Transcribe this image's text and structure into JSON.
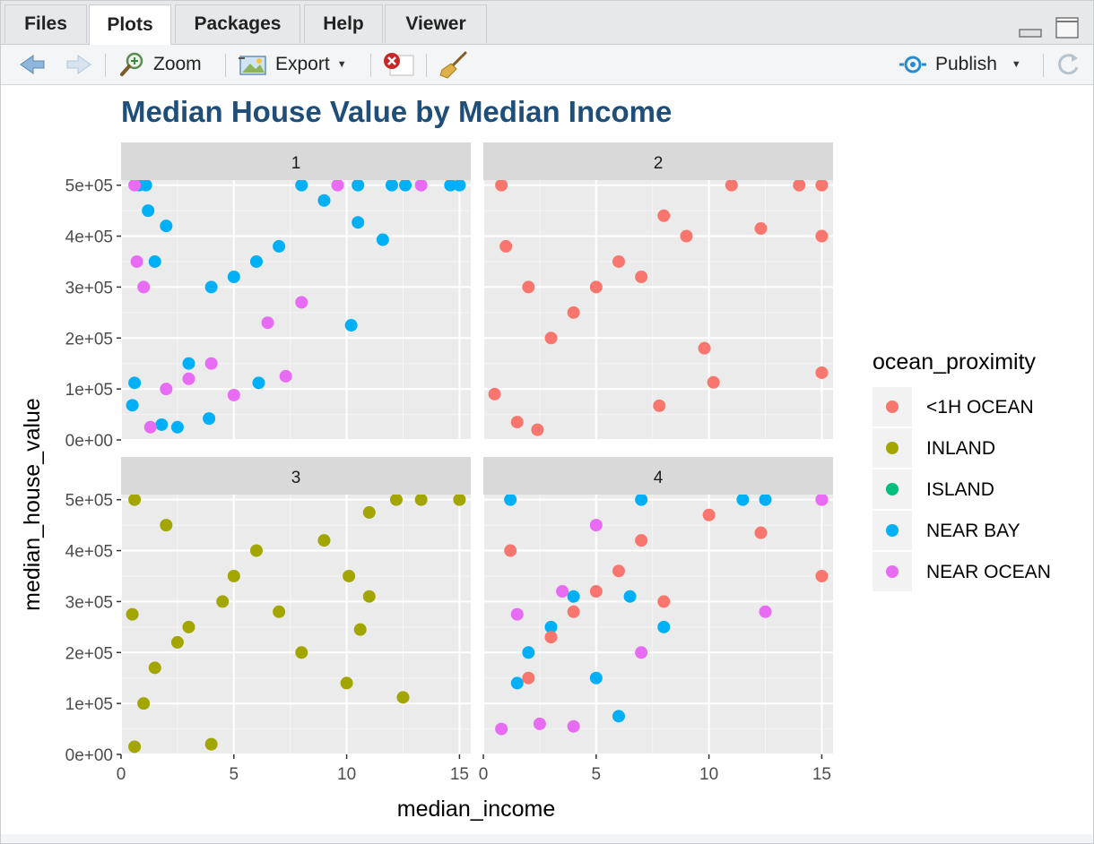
{
  "tabs": [
    {
      "label": "Files",
      "active": false
    },
    {
      "label": "Plots",
      "active": true
    },
    {
      "label": "Packages",
      "active": false
    },
    {
      "label": "Help",
      "active": false
    },
    {
      "label": "Viewer",
      "active": false
    }
  ],
  "toolbar": {
    "zoom_label": "Zoom",
    "export_label": "Export",
    "publish_label": "Publish"
  },
  "colors": {
    "title": "#1f4e79",
    "panel_bg": "#ebebeb",
    "strip_bg": "#d9d9d9",
    "<1H OCEAN": "#F8766D",
    "INLAND": "#A3A500",
    "ISLAND": "#00BF7D",
    "NEAR BAY": "#00B0F6",
    "NEAR OCEAN": "#E76BF3"
  },
  "chart_data": {
    "type": "scatter",
    "title": "Median House Value by Median Income",
    "xlabel": "median_income",
    "ylabel": "median_house_value",
    "xlim": [
      0,
      15.5
    ],
    "ylim": [
      0,
      510000
    ],
    "x_ticks": [
      0,
      5,
      10,
      15
    ],
    "x_tick_labels": [
      "0",
      "5",
      "10",
      "15"
    ],
    "y_ticks": [
      0,
      100000,
      200000,
      300000,
      400000,
      500000
    ],
    "y_tick_labels": [
      "0e+00",
      "1e+05",
      "2e+05",
      "3e+05",
      "4e+05",
      "5e+05"
    ],
    "grid": true,
    "legend": {
      "title": "ocean_proximity",
      "position": "right",
      "entries": [
        "<1H OCEAN",
        "INLAND",
        "ISLAND",
        "NEAR BAY",
        "NEAR OCEAN"
      ]
    },
    "facets": [
      {
        "label": "1",
        "points": [
          {
            "series": "NEAR BAY",
            "x": 0.5,
            "y": 68000
          },
          {
            "series": "NEAR BAY",
            "x": 0.6,
            "y": 112000
          },
          {
            "series": "NEAR BAY",
            "x": 0.8,
            "y": 500000
          },
          {
            "series": "NEAR BAY",
            "x": 1.1,
            "y": 500000
          },
          {
            "series": "NEAR BAY",
            "x": 1.2,
            "y": 450000
          },
          {
            "series": "NEAR BAY",
            "x": 1.5,
            "y": 350000
          },
          {
            "series": "NEAR BAY",
            "x": 1.8,
            "y": 30000
          },
          {
            "series": "NEAR BAY",
            "x": 2.0,
            "y": 420000
          },
          {
            "series": "NEAR BAY",
            "x": 2.5,
            "y": 25000
          },
          {
            "series": "NEAR BAY",
            "x": 3.0,
            "y": 150000
          },
          {
            "series": "NEAR BAY",
            "x": 4.0,
            "y": 300000
          },
          {
            "series": "NEAR BAY",
            "x": 5.0,
            "y": 320000
          },
          {
            "series": "NEAR BAY",
            "x": 6.0,
            "y": 350000
          },
          {
            "series": "NEAR BAY",
            "x": 7.0,
            "y": 380000
          },
          {
            "series": "NEAR BAY",
            "x": 8.0,
            "y": 500000
          },
          {
            "series": "NEAR BAY",
            "x": 9.0,
            "y": 470000
          },
          {
            "series": "NEAR BAY",
            "x": 10.2,
            "y": 225000
          },
          {
            "series": "NEAR BAY",
            "x": 10.5,
            "y": 427000
          },
          {
            "series": "NEAR BAY",
            "x": 10.5,
            "y": 500000
          },
          {
            "series": "NEAR BAY",
            "x": 11.6,
            "y": 393000
          },
          {
            "series": "NEAR BAY",
            "x": 12.0,
            "y": 500000
          },
          {
            "series": "NEAR BAY",
            "x": 12.6,
            "y": 500000
          },
          {
            "series": "NEAR BAY",
            "x": 14.6,
            "y": 500000
          },
          {
            "series": "NEAR BAY",
            "x": 15.0,
            "y": 500000
          },
          {
            "series": "NEAR BAY",
            "x": 6.1,
            "y": 112000
          },
          {
            "series": "NEAR BAY",
            "x": 3.9,
            "y": 42000
          },
          {
            "series": "NEAR OCEAN",
            "x": 0.6,
            "y": 500000
          },
          {
            "series": "NEAR OCEAN",
            "x": 0.7,
            "y": 350000
          },
          {
            "series": "NEAR OCEAN",
            "x": 1.0,
            "y": 300000
          },
          {
            "series": "NEAR OCEAN",
            "x": 1.3,
            "y": 25000
          },
          {
            "series": "NEAR OCEAN",
            "x": 2.0,
            "y": 100000
          },
          {
            "series": "NEAR OCEAN",
            "x": 3.0,
            "y": 120000
          },
          {
            "series": "NEAR OCEAN",
            "x": 4.0,
            "y": 150000
          },
          {
            "series": "NEAR OCEAN",
            "x": 5.0,
            "y": 88000
          },
          {
            "series": "NEAR OCEAN",
            "x": 6.5,
            "y": 230000
          },
          {
            "series": "NEAR OCEAN",
            "x": 7.3,
            "y": 125000
          },
          {
            "series": "NEAR OCEAN",
            "x": 8.0,
            "y": 270000
          },
          {
            "series": "NEAR OCEAN",
            "x": 9.6,
            "y": 500000
          },
          {
            "series": "NEAR OCEAN",
            "x": 13.3,
            "y": 500000
          }
        ]
      },
      {
        "label": "2",
        "points": [
          {
            "series": "<1H OCEAN",
            "x": 0.5,
            "y": 90000
          },
          {
            "series": "<1H OCEAN",
            "x": 0.8,
            "y": 500000
          },
          {
            "series": "<1H OCEAN",
            "x": 1.0,
            "y": 380000
          },
          {
            "series": "<1H OCEAN",
            "x": 1.5,
            "y": 35000
          },
          {
            "series": "<1H OCEAN",
            "x": 2.0,
            "y": 300000
          },
          {
            "series": "<1H OCEAN",
            "x": 2.4,
            "y": 20000
          },
          {
            "series": "<1H OCEAN",
            "x": 3.0,
            "y": 200000
          },
          {
            "series": "<1H OCEAN",
            "x": 4.0,
            "y": 250000
          },
          {
            "series": "<1H OCEAN",
            "x": 5.0,
            "y": 300000
          },
          {
            "series": "<1H OCEAN",
            "x": 6.0,
            "y": 350000
          },
          {
            "series": "<1H OCEAN",
            "x": 7.0,
            "y": 320000
          },
          {
            "series": "<1H OCEAN",
            "x": 7.8,
            "y": 67000
          },
          {
            "series": "<1H OCEAN",
            "x": 8.0,
            "y": 440000
          },
          {
            "series": "<1H OCEAN",
            "x": 9.0,
            "y": 400000
          },
          {
            "series": "<1H OCEAN",
            "x": 9.8,
            "y": 180000
          },
          {
            "series": "<1H OCEAN",
            "x": 10.2,
            "y": 113000
          },
          {
            "series": "<1H OCEAN",
            "x": 11.0,
            "y": 500000
          },
          {
            "series": "<1H OCEAN",
            "x": 12.3,
            "y": 415000
          },
          {
            "series": "<1H OCEAN",
            "x": 14.0,
            "y": 500000
          },
          {
            "series": "<1H OCEAN",
            "x": 15.0,
            "y": 400000
          },
          {
            "series": "<1H OCEAN",
            "x": 15.0,
            "y": 132000
          },
          {
            "series": "<1H OCEAN",
            "x": 15.0,
            "y": 500000
          }
        ]
      },
      {
        "label": "3",
        "points": [
          {
            "series": "INLAND",
            "x": 0.5,
            "y": 275000
          },
          {
            "series": "INLAND",
            "x": 0.6,
            "y": 500000
          },
          {
            "series": "INLAND",
            "x": 0.6,
            "y": 15000
          },
          {
            "series": "INLAND",
            "x": 1.0,
            "y": 100000
          },
          {
            "series": "INLAND",
            "x": 1.5,
            "y": 170000
          },
          {
            "series": "INLAND",
            "x": 2.0,
            "y": 450000
          },
          {
            "series": "INLAND",
            "x": 2.5,
            "y": 220000
          },
          {
            "series": "INLAND",
            "x": 3.0,
            "y": 250000
          },
          {
            "series": "INLAND",
            "x": 4.0,
            "y": 20000
          },
          {
            "series": "INLAND",
            "x": 4.5,
            "y": 300000
          },
          {
            "series": "INLAND",
            "x": 5.0,
            "y": 350000
          },
          {
            "series": "INLAND",
            "x": 6.0,
            "y": 400000
          },
          {
            "series": "INLAND",
            "x": 7.0,
            "y": 280000
          },
          {
            "series": "INLAND",
            "x": 8.0,
            "y": 200000
          },
          {
            "series": "INLAND",
            "x": 9.0,
            "y": 420000
          },
          {
            "series": "INLAND",
            "x": 10.0,
            "y": 140000
          },
          {
            "series": "INLAND",
            "x": 10.1,
            "y": 350000
          },
          {
            "series": "INLAND",
            "x": 10.6,
            "y": 245000
          },
          {
            "series": "INLAND",
            "x": 11.0,
            "y": 475000
          },
          {
            "series": "INLAND",
            "x": 11.0,
            "y": 310000
          },
          {
            "series": "INLAND",
            "x": 12.5,
            "y": 112000
          },
          {
            "series": "INLAND",
            "x": 12.2,
            "y": 500000
          },
          {
            "series": "INLAND",
            "x": 13.3,
            "y": 500000
          },
          {
            "series": "INLAND",
            "x": 15.0,
            "y": 500000
          }
        ]
      },
      {
        "label": "4",
        "points": [
          {
            "series": "NEAR BAY",
            "x": 1.2,
            "y": 500000
          },
          {
            "series": "NEAR BAY",
            "x": 1.5,
            "y": 140000
          },
          {
            "series": "NEAR BAY",
            "x": 2.0,
            "y": 200000
          },
          {
            "series": "NEAR BAY",
            "x": 3.0,
            "y": 250000
          },
          {
            "series": "NEAR BAY",
            "x": 4.0,
            "y": 310000
          },
          {
            "series": "NEAR BAY",
            "x": 5.0,
            "y": 150000
          },
          {
            "series": "NEAR BAY",
            "x": 6.0,
            "y": 75000
          },
          {
            "series": "NEAR BAY",
            "x": 6.5,
            "y": 310000
          },
          {
            "series": "NEAR BAY",
            "x": 7.0,
            "y": 500000
          },
          {
            "series": "NEAR BAY",
            "x": 8.0,
            "y": 250000
          },
          {
            "series": "NEAR BAY",
            "x": 11.5,
            "y": 500000
          },
          {
            "series": "NEAR BAY",
            "x": 12.5,
            "y": 500000
          },
          {
            "series": "<1H OCEAN",
            "x": 1.2,
            "y": 400000
          },
          {
            "series": "<1H OCEAN",
            "x": 2.0,
            "y": 150000
          },
          {
            "series": "<1H OCEAN",
            "x": 3.0,
            "y": 230000
          },
          {
            "series": "<1H OCEAN",
            "x": 4.0,
            "y": 280000
          },
          {
            "series": "<1H OCEAN",
            "x": 5.0,
            "y": 320000
          },
          {
            "series": "<1H OCEAN",
            "x": 6.0,
            "y": 360000
          },
          {
            "series": "<1H OCEAN",
            "x": 7.0,
            "y": 420000
          },
          {
            "series": "<1H OCEAN",
            "x": 8.0,
            "y": 300000
          },
          {
            "series": "<1H OCEAN",
            "x": 10.0,
            "y": 470000
          },
          {
            "series": "<1H OCEAN",
            "x": 12.3,
            "y": 435000
          },
          {
            "series": "<1H OCEAN",
            "x": 15.0,
            "y": 350000
          },
          {
            "series": "<1H OCEAN",
            "x": 15.0,
            "y": 500000
          },
          {
            "series": "NEAR OCEAN",
            "x": 0.8,
            "y": 50000
          },
          {
            "series": "NEAR OCEAN",
            "x": 1.5,
            "y": 275000
          },
          {
            "series": "NEAR OCEAN",
            "x": 2.5,
            "y": 60000
          },
          {
            "series": "NEAR OCEAN",
            "x": 3.5,
            "y": 320000
          },
          {
            "series": "NEAR OCEAN",
            "x": 4.0,
            "y": 55000
          },
          {
            "series": "NEAR OCEAN",
            "x": 5.0,
            "y": 450000
          },
          {
            "series": "NEAR OCEAN",
            "x": 7.0,
            "y": 200000
          },
          {
            "series": "NEAR OCEAN",
            "x": 12.5,
            "y": 280000
          },
          {
            "series": "NEAR OCEAN",
            "x": 15.0,
            "y": 500000
          }
        ]
      }
    ]
  }
}
